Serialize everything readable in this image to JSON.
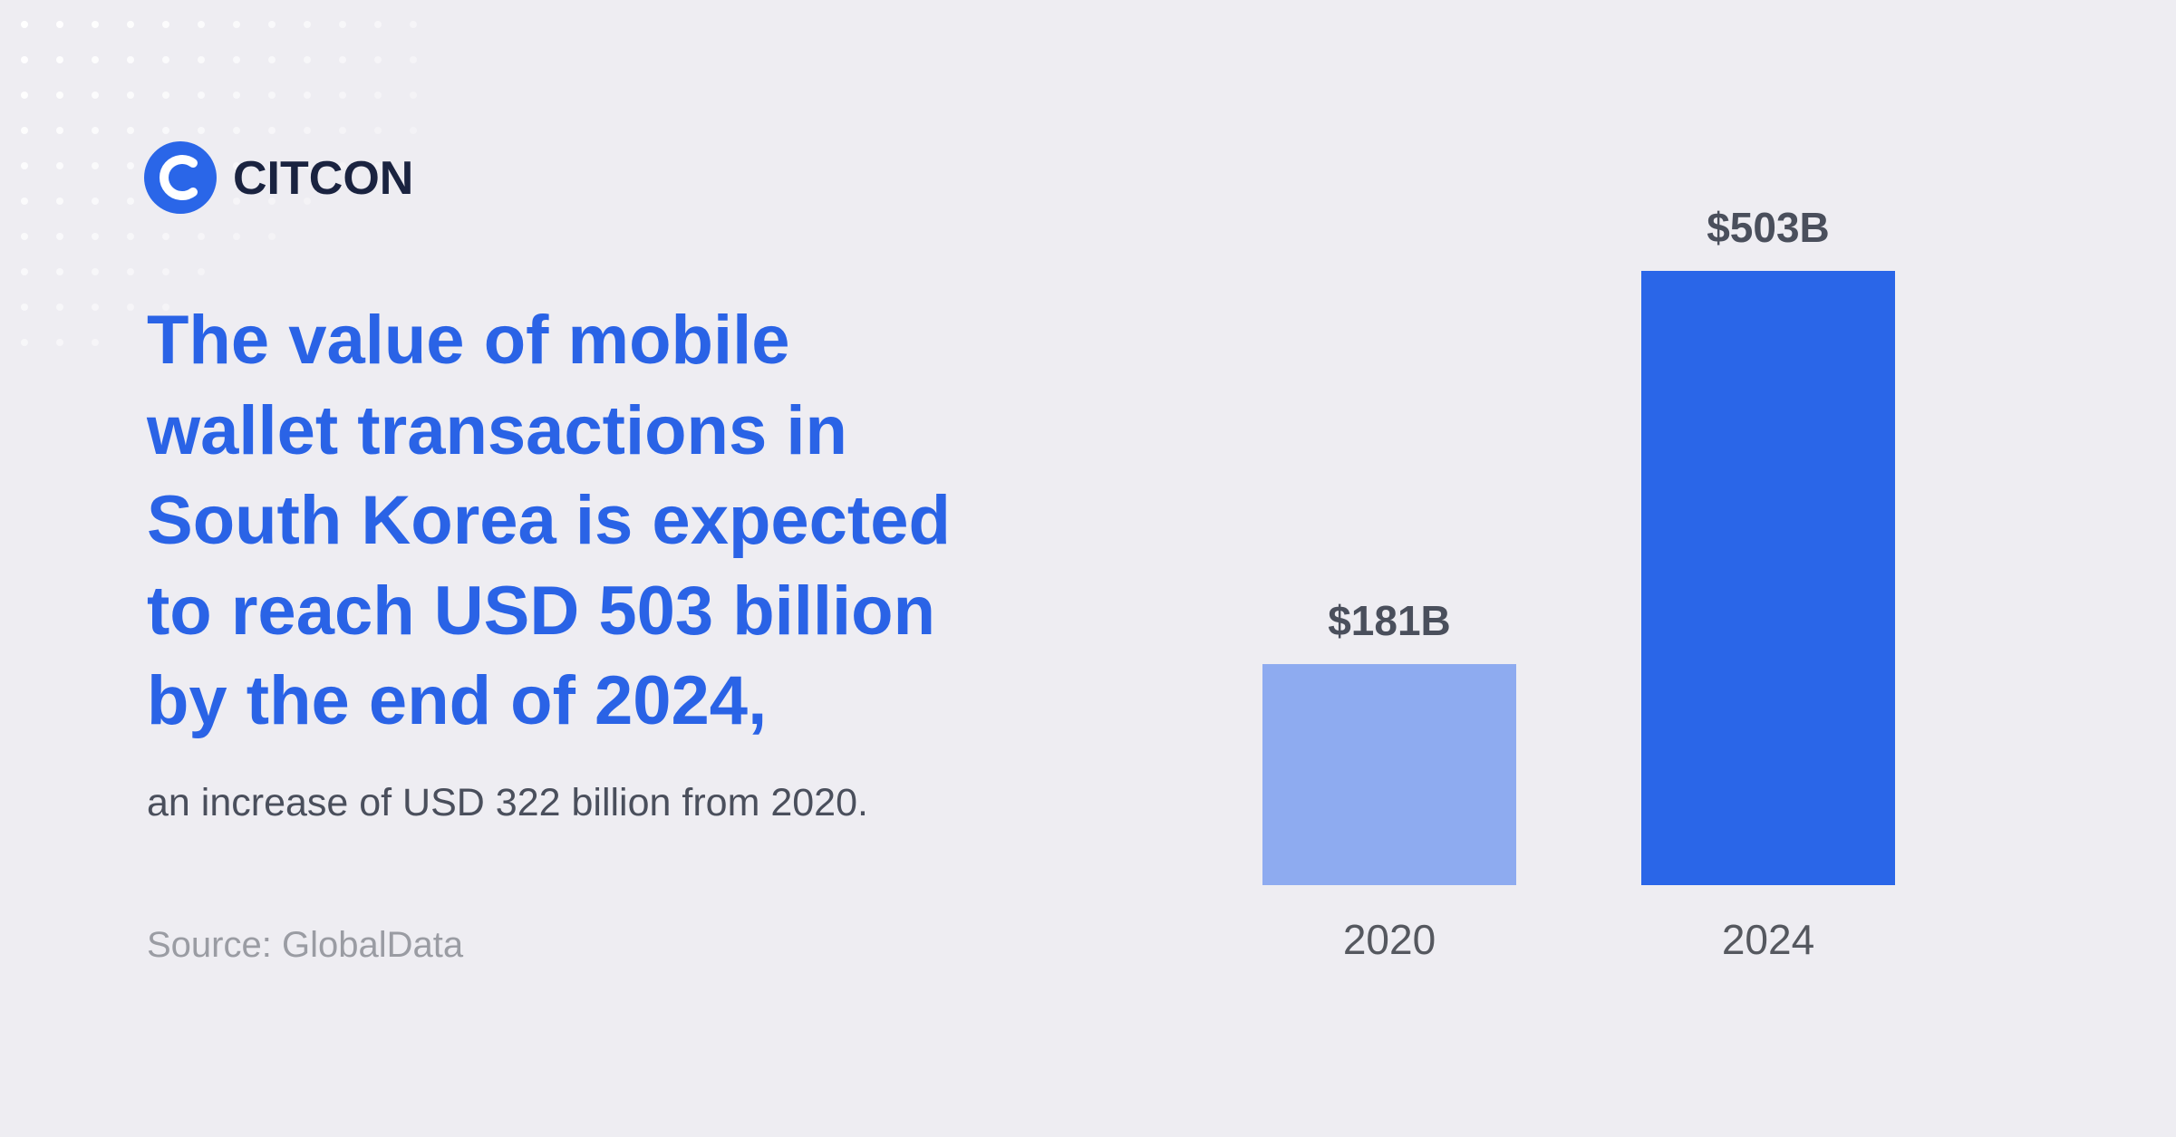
{
  "brand": "CITCON",
  "headline": [
    "The value of mobile",
    "wallet transactions in",
    "South Korea is expected",
    "to reach USD 503 billion",
    "by the end of 2024,"
  ],
  "subtext": "an increase of USD 322 billion from 2020.",
  "source": "Source: GlobalData",
  "chart_data": {
    "type": "bar",
    "categories": [
      "2020",
      "2024"
    ],
    "values": [
      181,
      503
    ],
    "value_labels": [
      "$181B",
      "$503B"
    ],
    "colors": [
      "#8eabf0",
      "#2a66e8"
    ]
  }
}
